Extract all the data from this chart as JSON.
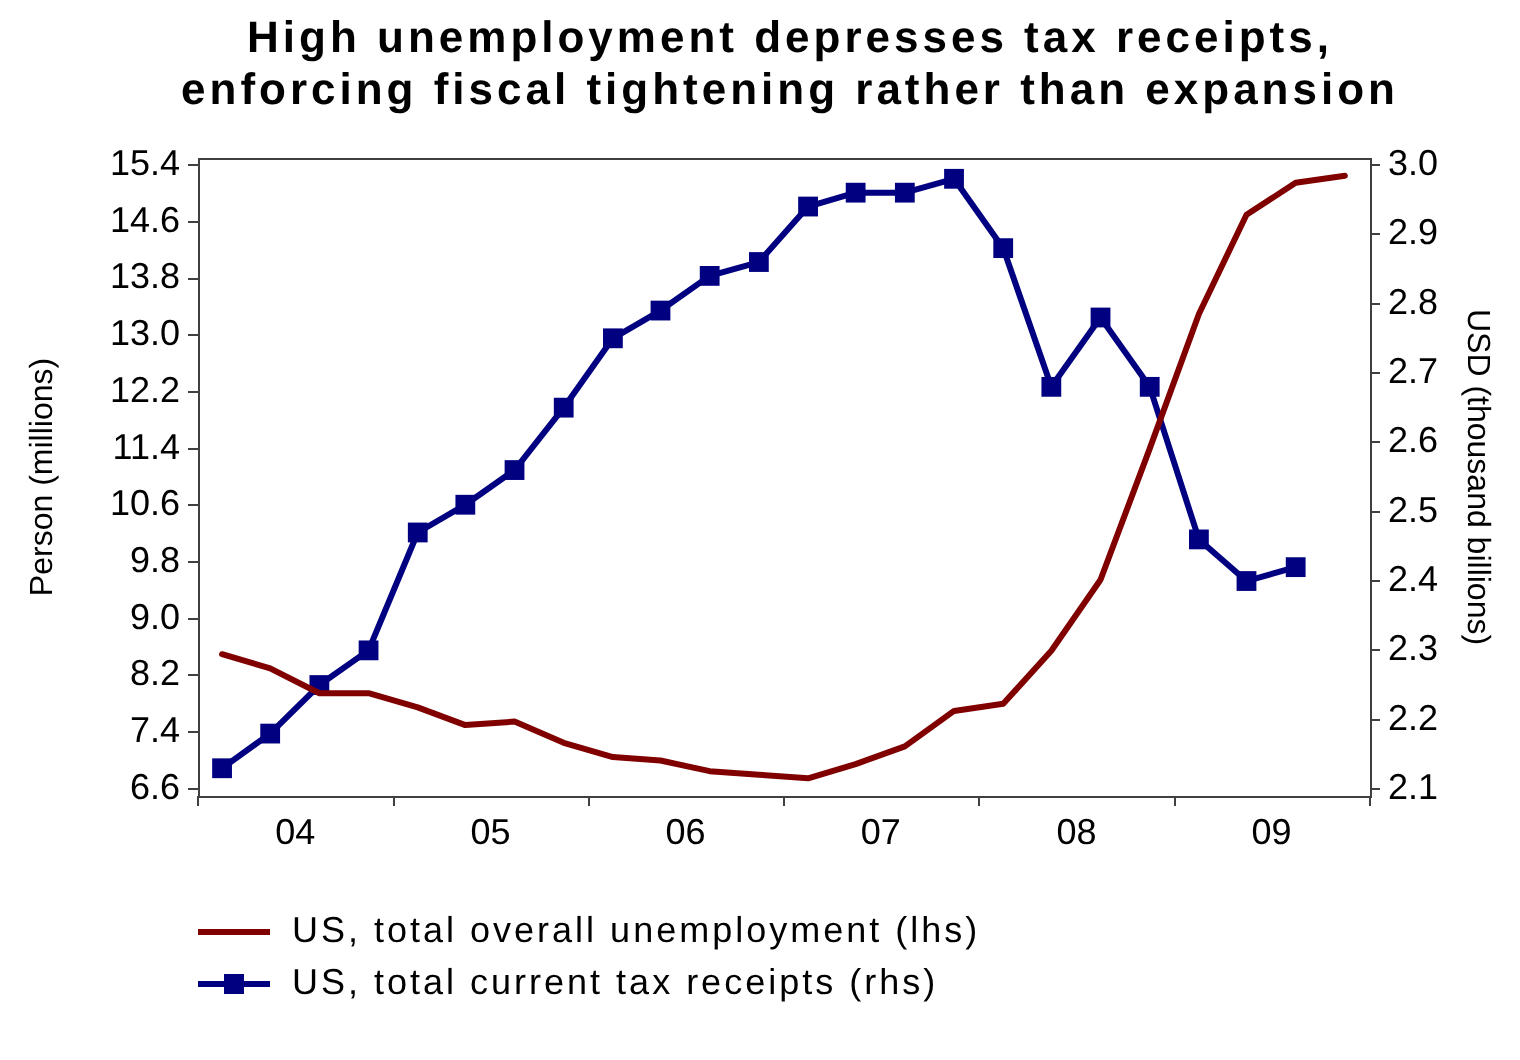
{
  "chart_data": {
    "type": "line",
    "title": "High unemployment depresses tax receipts, enforcing fiscal tightening rather than expansion",
    "ylabel": "Person (millions)",
    "y2label": "USD (thousand billions)",
    "x": [
      "2004-02-15",
      "2004-05-15",
      "2004-08-15",
      "2004-11-15",
      "2005-02-15",
      "2005-05-15",
      "2005-08-15",
      "2005-11-15",
      "2006-02-15",
      "2006-05-15",
      "2006-08-15",
      "2006-11-15",
      "2007-02-15",
      "2007-05-15",
      "2007-08-15",
      "2007-11-15",
      "2008-02-15",
      "2008-05-15",
      "2008-08-15",
      "2008-11-15",
      "2009-02-15",
      "2009-05-15",
      "2009-08-15",
      "2009-11-15"
    ],
    "series": [
      {
        "name": "US, total overall unemployment (lhs)",
        "color": "#800000",
        "marker": "none",
        "values": [
          8.5,
          8.3,
          7.95,
          7.95,
          7.75,
          7.5,
          7.55,
          7.25,
          7.05,
          7.0,
          6.85,
          6.8,
          6.75,
          6.95,
          7.2,
          7.7,
          7.8,
          8.55,
          9.55,
          11.4,
          13.3,
          14.7,
          15.15,
          15.25
        ]
      },
      {
        "name": "US, total current tax receipts (rhs)",
        "color": "#000080",
        "marker": "square",
        "axis": "y2",
        "x": [
          "2004-02-15",
          "2004-05-15",
          "2004-08-15",
          "2004-11-15",
          "2005-02-15",
          "2005-05-15",
          "2005-08-15",
          "2005-11-15",
          "2006-02-15",
          "2006-05-15",
          "2006-08-15",
          "2006-11-15",
          "2007-02-15",
          "2007-05-15",
          "2007-08-15",
          "2007-11-15",
          "2008-02-15",
          "2008-05-15",
          "2008-08-15",
          "2008-11-15",
          "2009-02-15",
          "2009-05-15",
          "2009-08-15"
        ],
        "values": [
          2.13,
          2.18,
          2.25,
          2.3,
          2.47,
          2.51,
          2.56,
          2.65,
          2.75,
          2.79,
          2.84,
          2.86,
          2.94,
          2.96,
          2.96,
          2.98,
          2.88,
          2.68,
          2.78,
          2.68,
          2.46,
          2.4,
          2.42
        ]
      }
    ],
    "xlim": [
      "2004-01-01",
      "2010-01-01"
    ],
    "xticks": [
      {
        "value": "2004-01-01",
        "label": null
      },
      {
        "value": "2004-07-01",
        "label": "04"
      },
      {
        "value": "2005-01-01",
        "label": null
      },
      {
        "value": "2005-07-01",
        "label": "05"
      },
      {
        "value": "2006-01-01",
        "label": null
      },
      {
        "value": "2006-07-01",
        "label": "06"
      },
      {
        "value": "2007-01-01",
        "label": null
      },
      {
        "value": "2007-07-01",
        "label": "07"
      },
      {
        "value": "2008-01-01",
        "label": null
      },
      {
        "value": "2008-07-01",
        "label": "08"
      },
      {
        "value": "2009-01-01",
        "label": null
      },
      {
        "value": "2009-07-01",
        "label": "09"
      },
      {
        "value": "2010-01-01",
        "label": null
      }
    ],
    "ylim": [
      6.5,
      15.5
    ],
    "yticks": [
      6.6,
      7.4,
      8.2,
      {
        "value": 9,
        "label": "9.0"
      },
      9.8,
      10.6,
      11.4,
      12.2,
      {
        "value": 13,
        "label": "13.0"
      },
      13.8,
      14.6,
      15.4
    ],
    "y2lim": [
      2.09,
      3.01
    ],
    "y2ticks": [
      2.1,
      2.2,
      2.3,
      2.4,
      2.5,
      2.6,
      2.7,
      2.8,
      2.9,
      {
        "value": 3,
        "label": "3.0"
      }
    ],
    "grid": false,
    "legend": "bottom"
  }
}
